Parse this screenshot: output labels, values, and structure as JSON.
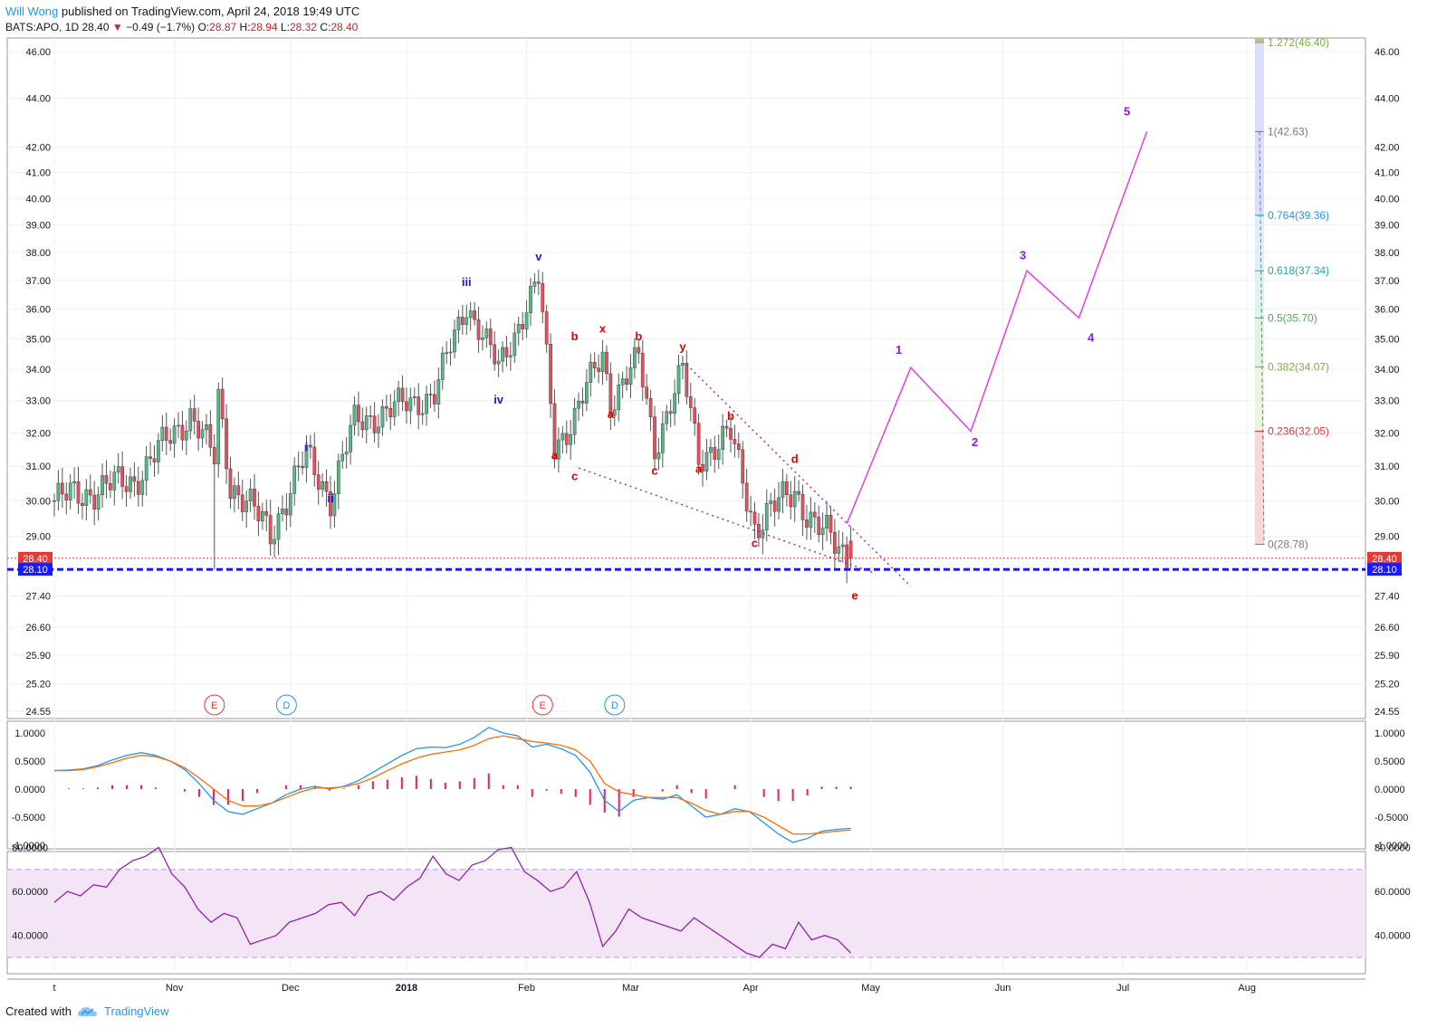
{
  "header": {
    "author": "Will Wong",
    "published": "published on TradingView.com, April 24, 2018 19:49 UTC"
  },
  "quote": {
    "symbol": "BATS:APO, 1D",
    "last": "28.40",
    "arrow": "▼",
    "change": "−0.49 (−1.7%)",
    "o_label": "O:",
    "o": "28.87",
    "h_label": "H:",
    "h": "28.94",
    "l_label": "L:",
    "l": "28.32",
    "c_label": "C:",
    "c": "28.40"
  },
  "footer": {
    "created": "Created with",
    "brand": "TradingView",
    "icon": "tradingview-cloud-icon"
  },
  "colors": {
    "up": "#53b987",
    "down": "#eb4d5c",
    "wave_blue": "#1a1ad4",
    "wave_red": "#e00000",
    "wave_purple": "#8c1ae0",
    "projection": "#e040e0",
    "support": "#1a1aff",
    "macd": "#2196f3",
    "signal": "#ff6d00",
    "hist": "#e91e63",
    "rsi": "#8e24aa",
    "rsi_band": "#f3e5f5"
  },
  "chart_data": [
    {
      "type": "candlestick",
      "title": "",
      "y_ticks": [
        "46.00",
        "44.00",
        "42.00",
        "41.00",
        "40.00",
        "39.00",
        "38.00",
        "37.00",
        "36.00",
        "35.00",
        "34.00",
        "33.00",
        "32.00",
        "31.00",
        "30.00",
        "29.00",
        "27.40",
        "26.60",
        "25.90",
        "25.20",
        "24.55"
      ],
      "x_ticks": [
        "t",
        "Nov",
        "Dec",
        "2018",
        "Feb",
        "Mar",
        "Apr",
        "May",
        "Jun",
        "Jul",
        "Aug"
      ],
      "scale": "log",
      "ylim": [
        24.55,
        46.6
      ],
      "price_labels": {
        "last": "28.40",
        "support": "28.10"
      },
      "candles": [],
      "wave_labels": [
        {
          "t": "i",
          "bar": 63,
          "p": 31.45,
          "c": "blue"
        },
        {
          "t": "ii",
          "bar": 69,
          "p": 29.95,
          "c": "blue"
        },
        {
          "t": "iii",
          "bar": 103,
          "p": 36.8,
          "c": "blue"
        },
        {
          "t": "iv",
          "bar": 111,
          "p": 32.9,
          "c": "blue"
        },
        {
          "t": "v",
          "bar": 121,
          "p": 37.7,
          "c": "blue"
        },
        {
          "t": "a",
          "bar": 125,
          "p": 31.2,
          "c": "red"
        },
        {
          "t": "b",
          "bar": 130,
          "p": 34.95,
          "c": "red"
        },
        {
          "t": "c",
          "bar": 130,
          "p": 30.6,
          "c": "red"
        },
        {
          "t": "x",
          "bar": 137,
          "p": 35.2,
          "c": "red"
        },
        {
          "t": "a",
          "bar": 139,
          "p": 32.45,
          "c": "red"
        },
        {
          "t": "b",
          "bar": 146,
          "p": 34.95,
          "c": "red"
        },
        {
          "t": "c",
          "bar": 150,
          "p": 30.75,
          "c": "red"
        },
        {
          "t": "y",
          "bar": 157,
          "p": 34.6,
          "c": "red"
        },
        {
          "t": "a",
          "bar": 161,
          "p": 30.8,
          "c": "red"
        },
        {
          "t": "b",
          "bar": 169,
          "p": 32.4,
          "c": "red"
        },
        {
          "t": "c",
          "bar": 175,
          "p": 28.7,
          "c": "red"
        },
        {
          "t": "d",
          "bar": 185,
          "p": 31.1,
          "c": "red"
        },
        {
          "t": "e",
          "bar": 200,
          "p": 27.3,
          "c": "red"
        },
        {
          "t": "1",
          "bar": 211,
          "p": 34.5,
          "c": "purple"
        },
        {
          "t": "2",
          "bar": 230,
          "p": 31.6,
          "c": "purple"
        },
        {
          "t": "3",
          "bar": 242,
          "p": 37.75,
          "c": "purple"
        },
        {
          "t": "4",
          "bar": 259,
          "p": 34.9,
          "c": "purple"
        },
        {
          "t": "5",
          "bar": 268,
          "p": 43.3,
          "c": "purple"
        }
      ],
      "projection": [
        [
          198,
          29.35
        ],
        [
          214,
          34.05
        ],
        [
          229,
          32.05
        ],
        [
          243,
          37.34
        ],
        [
          256,
          35.7
        ],
        [
          273,
          42.63
        ]
      ],
      "wedge_upper": [
        [
          158,
          34.15
        ],
        [
          214,
          27.65
        ]
      ],
      "wedge_lower": [
        [
          131,
          30.95
        ],
        [
          205,
          28.0
        ]
      ],
      "fib_levels": [
        {
          "label": "1.272(46.40)",
          "p": 46.4,
          "c": "#7cb342"
        },
        {
          "label": "1(42.63)",
          "p": 42.63,
          "c": "#787b86"
        },
        {
          "label": "0.764(39.36)",
          "p": 39.36,
          "c": "#2196f3"
        },
        {
          "label": "0.618(37.34)",
          "p": 37.34,
          "c": "#26a69a"
        },
        {
          "label": "0.5(35.70)",
          "p": 35.7,
          "c": "#4caf50"
        },
        {
          "label": "0.382(34.07)",
          "p": 34.07,
          "c": "#7cb342"
        },
        {
          "label": "0.236(32.05)",
          "p": 32.05,
          "c": "#e53935"
        },
        {
          "label": "0(28.78)",
          "p": 28.78,
          "c": "#787b86"
        }
      ],
      "events": [
        {
          "t": "E",
          "bar": 40,
          "c": "#e53935"
        },
        {
          "t": "D",
          "bar": 58,
          "c": "#2196f3"
        },
        {
          "t": "E",
          "bar": 122,
          "c": "#e53935"
        },
        {
          "t": "D",
          "bar": 140,
          "c": "#2196f3"
        }
      ]
    },
    {
      "type": "line",
      "name": "MACD",
      "y_ticks": [
        "1.0000",
        "0.5000",
        "0.0000",
        "-0.5000",
        "-1.0000"
      ],
      "ylim": [
        -1.0,
        1.0
      ],
      "macd": [
        0.33,
        0.34,
        0.36,
        0.42,
        0.52,
        0.6,
        0.65,
        0.6,
        0.5,
        0.35,
        0.1,
        -0.2,
        -0.4,
        -0.45,
        -0.35,
        -0.25,
        -0.1,
        0.0,
        0.05,
        0.0,
        0.05,
        0.15,
        0.3,
        0.45,
        0.6,
        0.72,
        0.75,
        0.74,
        0.8,
        0.92,
        1.1,
        1.0,
        0.95,
        0.75,
        0.8,
        0.72,
        0.6,
        0.3,
        -0.2,
        -0.4,
        -0.2,
        -0.15,
        -0.18,
        -0.1,
        -0.3,
        -0.5,
        -0.45,
        -0.35,
        -0.4,
        -0.6,
        -0.8,
        -0.95,
        -0.88,
        -0.75,
        -0.72,
        -0.7
      ],
      "signal": [
        0.33,
        0.33,
        0.35,
        0.4,
        0.47,
        0.55,
        0.6,
        0.58,
        0.5,
        0.38,
        0.2,
        0.0,
        -0.2,
        -0.3,
        -0.3,
        -0.25,
        -0.15,
        -0.05,
        0.02,
        0.02,
        0.04,
        0.1,
        0.2,
        0.33,
        0.45,
        0.55,
        0.62,
        0.66,
        0.7,
        0.78,
        0.9,
        0.95,
        0.9,
        0.85,
        0.82,
        0.78,
        0.7,
        0.5,
        0.1,
        -0.05,
        -0.1,
        -0.15,
        -0.15,
        -0.15,
        -0.25,
        -0.38,
        -0.45,
        -0.4,
        -0.4,
        -0.5,
        -0.65,
        -0.8,
        -0.8,
        -0.78,
        -0.75,
        -0.73
      ]
    },
    {
      "type": "line",
      "name": "RSI",
      "y_ticks": [
        "80.0000",
        "60.0000",
        "40.0000"
      ],
      "ylim": [
        28,
        82
      ],
      "band": [
        30,
        70
      ],
      "values": [
        55,
        60,
        58,
        63,
        62,
        70,
        74,
        76,
        80,
        68,
        62,
        52,
        46,
        50,
        48,
        36,
        38,
        40,
        46,
        48,
        50,
        54,
        55,
        49,
        58,
        60,
        56,
        62,
        66,
        76,
        68,
        65,
        72,
        74,
        79,
        80,
        69,
        65,
        60,
        62,
        69,
        55,
        35,
        42,
        52,
        48,
        46,
        44,
        42,
        48,
        44,
        40,
        36,
        32,
        30,
        36,
        34,
        46,
        38,
        40,
        38,
        32
      ]
    }
  ]
}
